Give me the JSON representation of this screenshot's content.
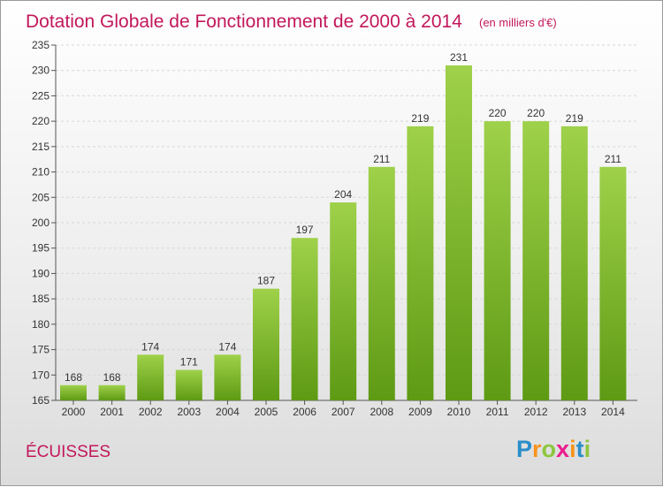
{
  "chart_data": {
    "type": "bar",
    "title": "Dotation Globale de Fonctionnement de 2000 à 2014",
    "subtitle": "(en milliers d'€)",
    "categories": [
      "2000",
      "2001",
      "2002",
      "2003",
      "2004",
      "2005",
      "2006",
      "2007",
      "2008",
      "2009",
      "2010",
      "2011",
      "2012",
      "2013",
      "2014"
    ],
    "values": [
      168,
      168,
      174,
      171,
      174,
      187,
      197,
      204,
      211,
      219,
      231,
      220,
      220,
      219,
      211
    ],
    "ylim": [
      165,
      235
    ],
    "yticks": [
      165,
      170,
      175,
      180,
      185,
      190,
      195,
      200,
      205,
      210,
      215,
      220,
      225,
      230,
      235
    ],
    "grid": true,
    "legend": "none",
    "bar_color_top": "#9fd14a",
    "bar_color_bottom": "#5e9a14"
  },
  "commune": "ÉCUISSES",
  "logo": {
    "letters": [
      "P",
      "r",
      "o",
      "x",
      "i",
      "t",
      "i"
    ],
    "colors": [
      "#2a8ec9",
      "#f7941d",
      "#8dc63f",
      "#ec1c8c",
      "#f7941d",
      "#2a8ec9",
      "#8dc63f"
    ]
  }
}
